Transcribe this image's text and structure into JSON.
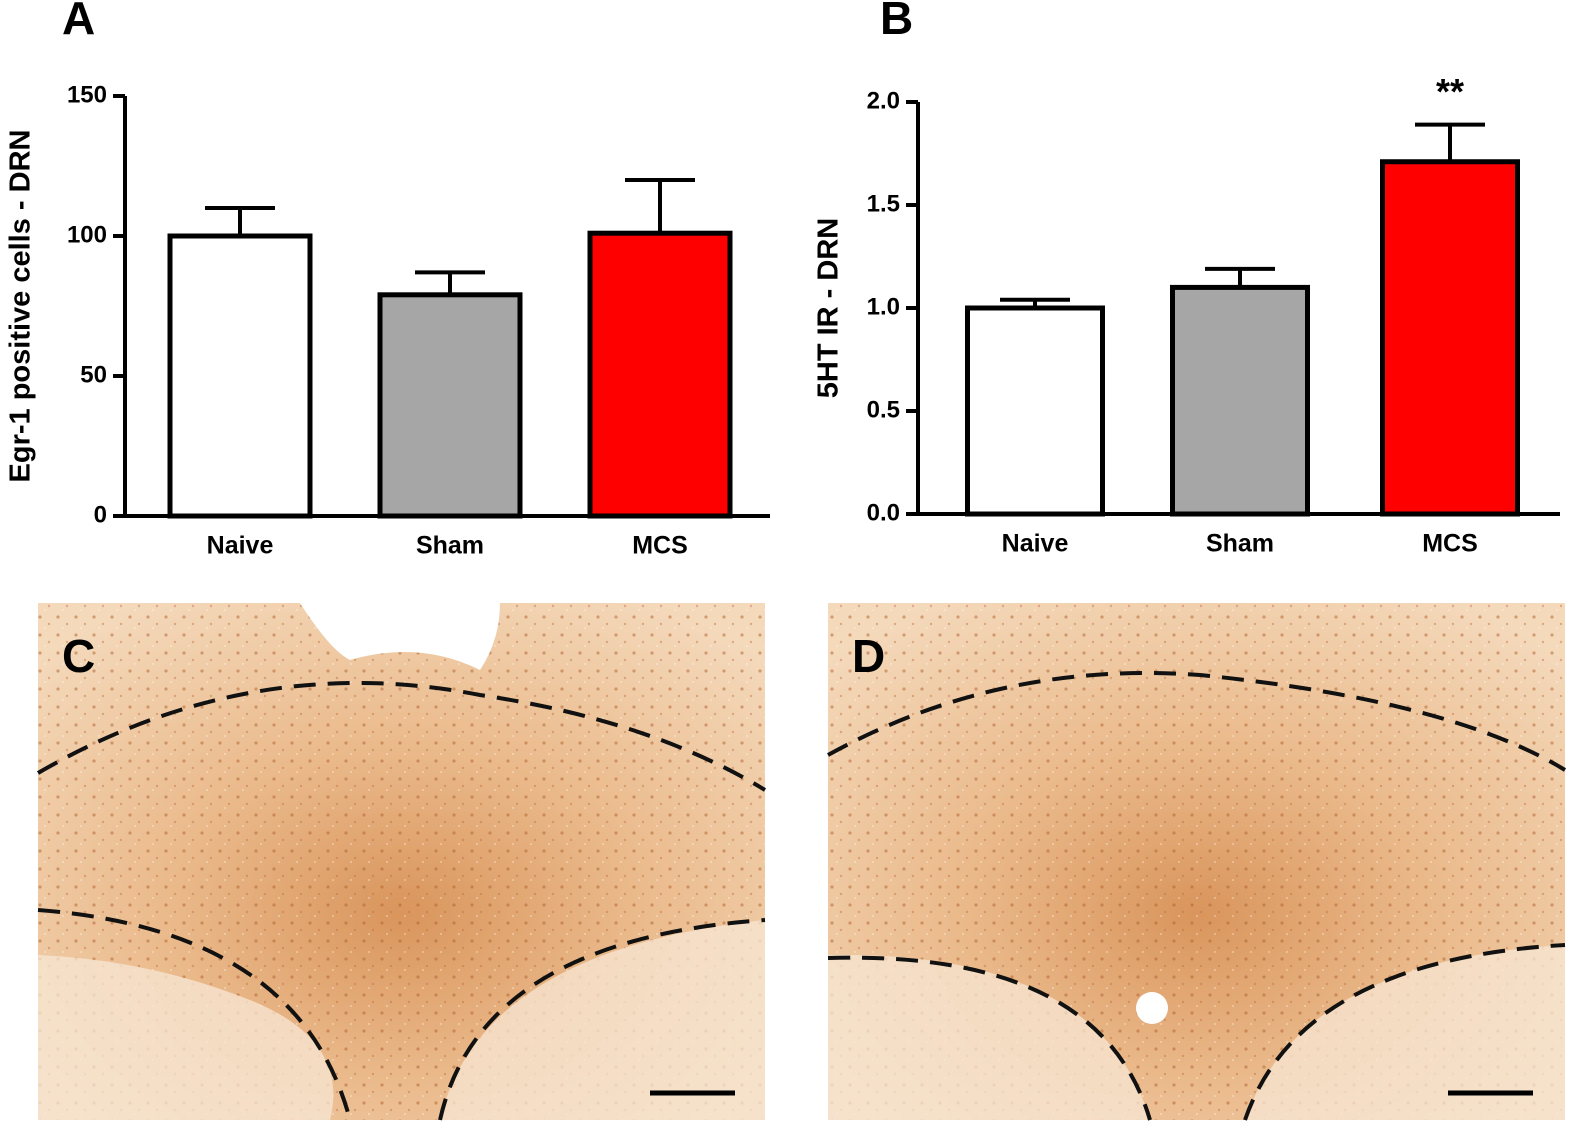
{
  "chart_data": [
    {
      "type": "bar",
      "panel_label": "A",
      "y_label": "Egr-1 positive cells - DRN",
      "categories": [
        "Naive",
        "Sham",
        "MCS"
      ],
      "values": [
        100,
        79,
        101
      ],
      "errors": [
        10,
        8,
        19
      ],
      "colors": [
        "#ffffff",
        "#a6a6a6",
        "#ff0000"
      ],
      "ylim": [
        0,
        150
      ],
      "yticks": [
        0,
        50,
        100,
        150
      ]
    },
    {
      "type": "bar",
      "panel_label": "B",
      "y_label": "5HT IR - DRN",
      "categories": [
        "Naive",
        "Sham",
        "MCS"
      ],
      "values": [
        1.0,
        1.1,
        1.71
      ],
      "errors": [
        0.04,
        0.09,
        0.18
      ],
      "colors": [
        "#ffffff",
        "#a6a6a6",
        "#ff0000"
      ],
      "ylim": [
        0,
        2
      ],
      "yticks": [
        {
          "value": 0,
          "label": "0.0"
        },
        0.5,
        {
          "value": 1,
          "label": "1.0"
        },
        1.5,
        {
          "value": 2,
          "label": "2.0"
        }
      ],
      "annotations": [
        {
          "category": "MCS",
          "text": "**"
        }
      ]
    }
  ],
  "images": [
    {
      "label": "C"
    },
    {
      "label": "D"
    }
  ]
}
